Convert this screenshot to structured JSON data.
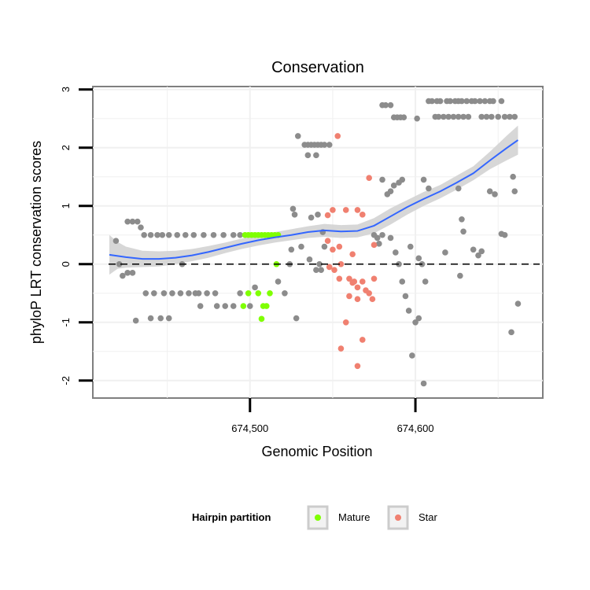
{
  "chart_data": {
    "type": "scatter",
    "title": "Conservation",
    "xlabel": "Genomic Position",
    "ylabel": "phyloP LRT conservation scores",
    "xlim": [
      674405,
      674677
    ],
    "ylim": [
      -2.3,
      3.05
    ],
    "x_ticks": [
      674500,
      674600
    ],
    "x_tick_labels": [
      "674,500",
      "674,600"
    ],
    "y_ticks": [
      -2,
      -1,
      0,
      1,
      2,
      3
    ],
    "y_tick_labels": [
      "-2",
      "-1",
      "0",
      "1",
      "2",
      "3"
    ],
    "grid": true,
    "reference_line": {
      "y": 0,
      "style": "dashed"
    },
    "legend": {
      "title": "Hairpin partition",
      "position": "bottom",
      "entries": [
        {
          "label": "Mature",
          "color": "#7FFF00"
        },
        {
          "label": "Star",
          "color": "#F08070"
        }
      ]
    },
    "colors": {
      "other": "#8C8C8C",
      "mature": "#7FFF00",
      "star": "#F08070",
      "smooth": "#3366FF",
      "band": "#D3D3D3"
    },
    "series": [
      {
        "name": "Mature",
        "points": [
          [
            674497,
            0.5
          ],
          [
            674499,
            0.5
          ],
          [
            674501,
            0.5
          ],
          [
            674503,
            0.5
          ],
          [
            674505,
            0.5
          ],
          [
            674507,
            0.5
          ],
          [
            674509,
            0.5
          ],
          [
            674511,
            0.5
          ],
          [
            674513,
            0.5
          ],
          [
            674515,
            0.5
          ],
          [
            674517,
            0.5
          ],
          [
            674516,
            0.0
          ],
          [
            674496,
            -0.72
          ],
          [
            674499,
            -0.5
          ],
          [
            674505,
            -0.5
          ],
          [
            674508,
            -0.72
          ],
          [
            674510,
            -0.72
          ],
          [
            674512,
            -0.5
          ],
          [
            674507,
            -0.94
          ]
        ]
      },
      {
        "name": "Star",
        "points": [
          [
            674553,
            2.2
          ],
          [
            674572,
            1.48
          ],
          [
            674550,
            0.93
          ],
          [
            674558,
            0.93
          ],
          [
            674565,
            0.93
          ],
          [
            674547,
            0.84
          ],
          [
            674568,
            0.85
          ],
          [
            674547,
            0.4
          ],
          [
            674554,
            0.3
          ],
          [
            674562,
            0.17
          ],
          [
            674575,
            0.33
          ],
          [
            674550,
            0.25
          ],
          [
            674555,
            0.0
          ],
          [
            674548,
            -0.05
          ],
          [
            674551,
            -0.1
          ],
          [
            674554,
            -0.25
          ],
          [
            674560,
            -0.25
          ],
          [
            674562,
            -0.32
          ],
          [
            674563,
            -0.3
          ],
          [
            674565,
            -0.4
          ],
          [
            674570,
            -0.45
          ],
          [
            674572,
            -0.5
          ],
          [
            674575,
            -0.25
          ],
          [
            674574,
            -0.6
          ],
          [
            674565,
            -0.6
          ],
          [
            674560,
            -0.55
          ],
          [
            674558,
            -1.0
          ],
          [
            674568,
            -1.3
          ],
          [
            674555,
            -1.45
          ],
          [
            674565,
            -1.75
          ],
          [
            674568,
            -0.3
          ]
        ]
      },
      {
        "name": "",
        "points": [
          [
            674419,
            0.4
          ],
          [
            674421,
            0.0
          ],
          [
            674423,
            -0.2
          ],
          [
            674426,
            -0.15
          ],
          [
            674429,
            -0.15
          ],
          [
            674426,
            0.73
          ],
          [
            674429,
            0.73
          ],
          [
            674432,
            0.73
          ],
          [
            674434,
            0.63
          ],
          [
            674436,
            0.5
          ],
          [
            674440,
            0.5
          ],
          [
            674444,
            0.5
          ],
          [
            674447,
            0.5
          ],
          [
            674451,
            0.5
          ],
          [
            674456,
            0.5
          ],
          [
            674461,
            0.5
          ],
          [
            674466,
            0.5
          ],
          [
            674472,
            0.5
          ],
          [
            674478,
            0.5
          ],
          [
            674484,
            0.5
          ],
          [
            674490,
            0.5
          ],
          [
            674494,
            0.5
          ],
          [
            674431,
            -0.97
          ],
          [
            674437,
            -0.5
          ],
          [
            674442,
            -0.5
          ],
          [
            674448,
            -0.5
          ],
          [
            674453,
            -0.5
          ],
          [
            674440,
            -0.93
          ],
          [
            674446,
            -0.93
          ],
          [
            674451,
            -0.93
          ],
          [
            674458,
            -0.5
          ],
          [
            674463,
            -0.5
          ],
          [
            674469,
            -0.5
          ],
          [
            674474,
            -0.5
          ],
          [
            674479,
            -0.5
          ],
          [
            674459,
            0.0
          ],
          [
            674467,
            -0.5
          ],
          [
            674470,
            -0.72
          ],
          [
            674480,
            -0.72
          ],
          [
            674485,
            -0.72
          ],
          [
            674490,
            -0.72
          ],
          [
            674494,
            -0.5
          ],
          [
            674500,
            -0.72
          ],
          [
            674503,
            -0.4
          ],
          [
            674517,
            -0.3
          ],
          [
            674521,
            -0.5
          ],
          [
            674524,
            0.0
          ],
          [
            674525,
            0.25
          ],
          [
            674526,
            0.95
          ],
          [
            674527,
            0.85
          ],
          [
            674528,
            -0.93
          ],
          [
            674529,
            2.2
          ],
          [
            674531,
            0.3
          ],
          [
            674533,
            2.05
          ],
          [
            674535,
            2.05
          ],
          [
            674537,
            2.05
          ],
          [
            674539,
            2.05
          ],
          [
            674541,
            2.05
          ],
          [
            674543,
            2.05
          ],
          [
            674545,
            2.05
          ],
          [
            674535,
            1.87
          ],
          [
            674540,
            1.87
          ],
          [
            674548,
            2.05
          ],
          [
            674536,
            0.08
          ],
          [
            674542,
            0.0
          ],
          [
            674540,
            -0.1
          ],
          [
            674544,
            0.55
          ],
          [
            674545,
            0.3
          ],
          [
            674537,
            0.8
          ],
          [
            674541,
            0.85
          ],
          [
            674543,
            -0.1
          ],
          [
            674580,
            2.73
          ],
          [
            674582,
            2.73
          ],
          [
            674585,
            2.73
          ],
          [
            674587,
            2.52
          ],
          [
            674589,
            2.52
          ],
          [
            674591,
            2.52
          ],
          [
            674593,
            2.52
          ],
          [
            674580,
            1.45
          ],
          [
            674583,
            1.2
          ],
          [
            674585,
            1.25
          ],
          [
            674587,
            1.35
          ],
          [
            674590,
            1.4
          ],
          [
            674592,
            1.45
          ],
          [
            674577,
            0.45
          ],
          [
            674585,
            0.45
          ],
          [
            674588,
            0.2
          ],
          [
            674590,
            0.0
          ],
          [
            674592,
            -0.3
          ],
          [
            674594,
            -0.55
          ],
          [
            674596,
            -0.8
          ],
          [
            674600,
            -1.0
          ],
          [
            674602,
            -0.93
          ],
          [
            674598,
            -1.57
          ],
          [
            674605,
            -2.05
          ],
          [
            674597,
            0.3
          ],
          [
            674601,
            2.5
          ],
          [
            674602,
            0.1
          ],
          [
            674604,
            0.0
          ],
          [
            674606,
            -0.3
          ],
          [
            674605,
            1.45
          ],
          [
            674608,
            1.3
          ],
          [
            674608,
            2.8
          ],
          [
            674610,
            2.8
          ],
          [
            674613,
            2.8
          ],
          [
            674615,
            2.8
          ],
          [
            674619,
            2.8
          ],
          [
            674621,
            2.8
          ],
          [
            674624,
            2.8
          ],
          [
            674626,
            2.8
          ],
          [
            674628,
            2.8
          ],
          [
            674631,
            2.8
          ],
          [
            674634,
            2.8
          ],
          [
            674636,
            2.8
          ],
          [
            674639,
            2.8
          ],
          [
            674642,
            2.8
          ],
          [
            674645,
            2.8
          ],
          [
            674647,
            2.8
          ],
          [
            674652,
            2.8
          ],
          [
            674612,
            2.53
          ],
          [
            674614,
            2.53
          ],
          [
            674617,
            2.53
          ],
          [
            674620,
            2.53
          ],
          [
            674623,
            2.53
          ],
          [
            674626,
            2.53
          ],
          [
            674629,
            2.53
          ],
          [
            674632,
            2.53
          ],
          [
            674640,
            2.53
          ],
          [
            674643,
            2.53
          ],
          [
            674646,
            2.53
          ],
          [
            674650,
            2.53
          ],
          [
            674654,
            2.53
          ],
          [
            674657,
            2.53
          ],
          [
            674660,
            2.53
          ],
          [
            674618,
            0.2
          ],
          [
            674626,
            1.3
          ],
          [
            674628,
            0.77
          ],
          [
            674629,
            0.56
          ],
          [
            674627,
            -0.2
          ],
          [
            674635,
            0.25
          ],
          [
            674638,
            0.15
          ],
          [
            674640,
            0.22
          ],
          [
            674645,
            1.25
          ],
          [
            674648,
            1.2
          ],
          [
            674652,
            0.52
          ],
          [
            674654,
            0.5
          ],
          [
            674659,
            1.5
          ],
          [
            674660,
            1.25
          ],
          [
            674662,
            -0.68
          ],
          [
            674658,
            -1.17
          ],
          [
            674580,
            0.5
          ],
          [
            674575,
            0.5
          ],
          [
            674578,
            0.35
          ]
        ]
      }
    ],
    "smooth_curve": [
      [
        674415,
        0.16
      ],
      [
        674425,
        0.12
      ],
      [
        674435,
        0.09
      ],
      [
        674445,
        0.09
      ],
      [
        674455,
        0.11
      ],
      [
        674465,
        0.15
      ],
      [
        674475,
        0.21
      ],
      [
        674485,
        0.28
      ],
      [
        674495,
        0.35
      ],
      [
        674505,
        0.41
      ],
      [
        674515,
        0.46
      ],
      [
        674525,
        0.5
      ],
      [
        674535,
        0.55
      ],
      [
        674545,
        0.58
      ],
      [
        674555,
        0.56
      ],
      [
        674565,
        0.57
      ],
      [
        674575,
        0.66
      ],
      [
        674585,
        0.82
      ],
      [
        674595,
        0.98
      ],
      [
        674605,
        1.12
      ],
      [
        674615,
        1.25
      ],
      [
        674625,
        1.4
      ],
      [
        674635,
        1.56
      ],
      [
        674645,
        1.78
      ],
      [
        674655,
        1.99
      ],
      [
        674662,
        2.13
      ]
    ],
    "smooth_band": {
      "x": [
        674415,
        674420,
        674425,
        674435,
        674445,
        674455,
        674465,
        674475,
        674485,
        674495,
        674505,
        674515,
        674525,
        674535,
        674545,
        674555,
        674565,
        674575,
        674585,
        674595,
        674605,
        674615,
        674625,
        674635,
        674645,
        674655,
        674662
      ],
      "upper": [
        0.5,
        0.38,
        0.3,
        0.23,
        0.22,
        0.23,
        0.26,
        0.31,
        0.37,
        0.44,
        0.5,
        0.55,
        0.6,
        0.65,
        0.69,
        0.67,
        0.68,
        0.79,
        0.96,
        1.1,
        1.24,
        1.36,
        1.52,
        1.68,
        1.93,
        2.2,
        2.38
      ],
      "lower": [
        -0.18,
        -0.08,
        -0.06,
        -0.05,
        -0.04,
        0.0,
        0.05,
        0.11,
        0.19,
        0.26,
        0.32,
        0.37,
        0.41,
        0.45,
        0.47,
        0.45,
        0.46,
        0.53,
        0.68,
        0.85,
        1.0,
        1.13,
        1.28,
        1.44,
        1.63,
        1.78,
        1.88
      ]
    }
  }
}
